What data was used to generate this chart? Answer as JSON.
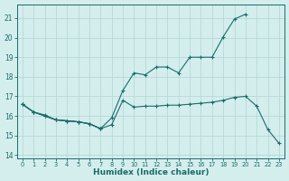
{
  "background_color": "#d4eeed",
  "line_color": "#1a6b6b",
  "grid_color": "#b8d8d8",
  "xlabel": "Humidex (Indice chaleur)",
  "x": [
    0,
    1,
    2,
    3,
    4,
    5,
    6,
    7,
    8,
    9,
    10,
    11,
    12,
    13,
    14,
    15,
    16,
    17,
    18,
    19,
    20,
    21,
    22,
    23
  ],
  "line1_y": [
    16.6,
    16.2,
    16.0,
    15.8,
    15.75,
    15.7,
    15.6,
    15.35,
    15.55,
    16.8,
    16.45,
    16.5,
    16.5,
    16.55,
    16.55,
    16.6,
    16.65,
    16.7,
    16.8,
    16.95,
    17.0,
    16.5,
    15.3,
    14.6
  ],
  "line2_y": [
    16.6,
    16.2,
    16.0,
    15.8,
    15.75,
    15.7,
    15.6,
    15.35,
    15.9,
    17.3,
    18.2,
    18.1,
    18.5,
    18.5,
    18.2,
    19.0,
    19.0,
    19.0,
    20.05,
    20.95,
    21.2,
    null,
    null,
    null
  ],
  "line3_y": [
    16.6,
    16.2,
    16.05,
    15.8,
    15.75,
    15.7,
    15.6,
    15.35,
    null,
    null,
    null,
    null,
    null,
    null,
    null,
    null,
    null,
    null,
    null,
    null,
    null,
    null,
    null,
    null
  ],
  "ylim_min": 13.85,
  "ylim_max": 21.7,
  "yticks": [
    14,
    15,
    16,
    17,
    18,
    19,
    20,
    21
  ]
}
